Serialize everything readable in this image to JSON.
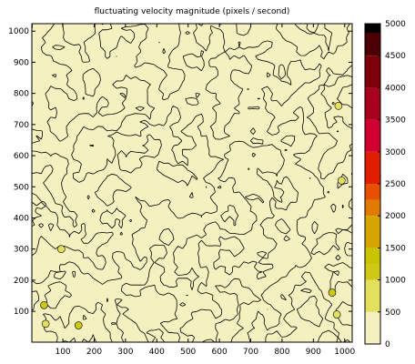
{
  "chart_data": {
    "type": "heatmap",
    "title": "fluctuating velocity magnitude  (pixels / second)",
    "xlabel": "",
    "ylabel": "",
    "xlim": [
      1,
      1024
    ],
    "ylim": [
      1,
      1024
    ],
    "x_ticks": [
      100,
      200,
      300,
      400,
      500,
      600,
      700,
      800,
      900,
      1000
    ],
    "y_ticks": [
      100,
      200,
      300,
      400,
      500,
      600,
      700,
      800,
      900,
      1000
    ],
    "colorbar": {
      "range": [
        0,
        5000
      ],
      "ticks": [
        0,
        500,
        1000,
        1500,
        2000,
        2500,
        3000,
        3500,
        4000,
        4500,
        5000
      ],
      "levels": [
        {
          "from": 0,
          "to": 500,
          "color": "#f5f0c0"
        },
        {
          "from": 500,
          "to": 1000,
          "color": "#e3e05e"
        },
        {
          "from": 1000,
          "to": 1250,
          "color": "#cfc915"
        },
        {
          "from": 1250,
          "to": 1500,
          "color": "#c8c400"
        },
        {
          "from": 1500,
          "to": 2000,
          "color": "#d6a600"
        },
        {
          "from": 2000,
          "to": 2250,
          "color": "#e07a00"
        },
        {
          "from": 2250,
          "to": 2500,
          "color": "#e85000"
        },
        {
          "from": 2500,
          "to": 3000,
          "color": "#e01e00"
        },
        {
          "from": 3000,
          "to": 3500,
          "color": "#d00030"
        },
        {
          "from": 3500,
          "to": 4000,
          "color": "#a8001c"
        },
        {
          "from": 4000,
          "to": 4500,
          "color": "#7c0008"
        },
        {
          "from": 4500,
          "to": 5000,
          "color": "#4a0005"
        },
        {
          "from": 5000,
          "to": 5000,
          "color": "#000000"
        }
      ]
    },
    "background_color": "#f5f0c0",
    "contour_color": "#000000",
    "hotspots": [
      {
        "x": 40,
        "y": 120,
        "level": 1000
      },
      {
        "x": 150,
        "y": 55,
        "level": 1000
      },
      {
        "x": 95,
        "y": 300,
        "level": 750
      },
      {
        "x": 960,
        "y": 160,
        "level": 1000
      },
      {
        "x": 990,
        "y": 520,
        "level": 750
      },
      {
        "x": 980,
        "y": 760,
        "level": 750
      },
      {
        "x": 975,
        "y": 90,
        "level": 750
      },
      {
        "x": 45,
        "y": 60,
        "level": 750
      }
    ]
  }
}
